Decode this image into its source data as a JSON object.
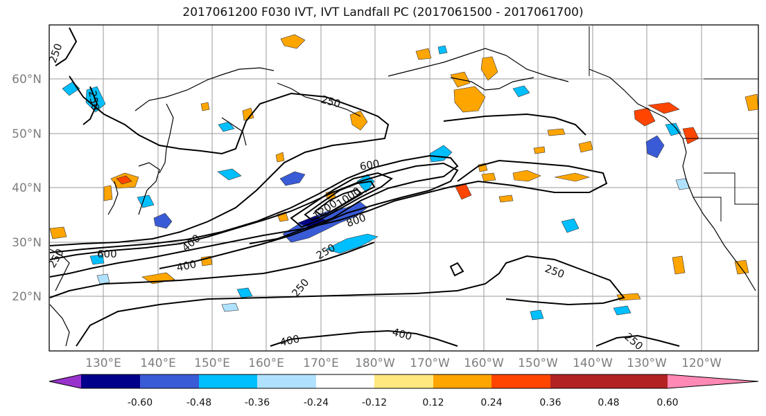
{
  "title": "2017061200 F030 IVT, IVT Landfall PC (2017061500 - 2017061700)",
  "lat_labels": [
    "60°N",
    "50°N",
    "40°N",
    "30°N",
    "20°N"
  ],
  "lon_labels": [
    "130°E",
    "140°E",
    "150°E",
    "160°E",
    "170°E",
    "180°W",
    "170°W",
    "160°W",
    "150°W",
    "140°W",
    "130°W",
    "120°W"
  ],
  "contour_labels": [
    "250",
    "250",
    "250",
    "600",
    "1000",
    "1200",
    "800",
    "600",
    "400",
    "400",
    "250",
    "250",
    "250",
    "400",
    "400",
    "250",
    "250"
  ],
  "colorbar": {
    "colors": [
      "#9932cc",
      "#00008b",
      "#3a5bd6",
      "#00bfff",
      "#b0e2ff",
      "#ffffff",
      "#ffe97f",
      "#ffa500",
      "#ff4500",
      "#b22222",
      "#ff89b4"
    ],
    "tick_labels": [
      "-0.60",
      "-0.48",
      "-0.36",
      "-0.24",
      "-0.12",
      "0.12",
      "0.24",
      "0.36",
      "0.48",
      "0.60"
    ]
  }
}
